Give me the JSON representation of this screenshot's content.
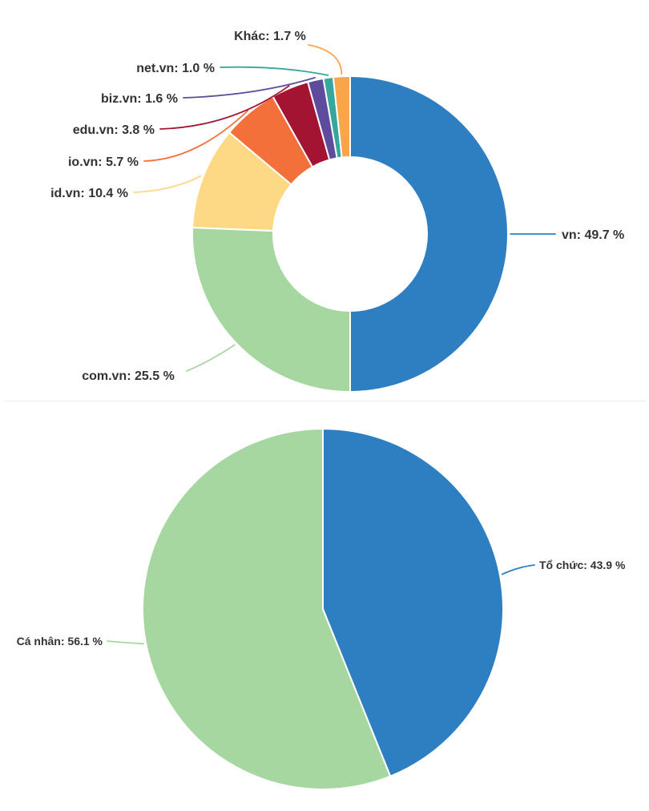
{
  "page": {
    "background": "#ffffff",
    "text_color": "#333333"
  },
  "chart_data": [
    {
      "type": "pie",
      "subtype": "donut",
      "title": "",
      "unit": "%",
      "categories": [
        "vn",
        "com.vn",
        "id.vn",
        "io.vn",
        "edu.vn",
        "biz.vn",
        "net.vn",
        "Khác"
      ],
      "values": [
        49.7,
        25.5,
        10.4,
        5.7,
        3.8,
        1.6,
        1.0,
        1.7
      ],
      "labels": [
        "vn: 49.7 %",
        "com.vn: 25.5 %",
        "id.vn: 10.4 %",
        "io.vn: 5.7 %",
        "edu.vn: 3.8 %",
        "biz.vn: 1.6 %",
        "net.vn: 1.0 %",
        "Khác: 1.7 %"
      ],
      "colors": [
        "#2e7fc1",
        "#a7d7a0",
        "#fdd985",
        "#f4703b",
        "#a31432",
        "#5e4b9e",
        "#35a79c",
        "#f9a64a"
      ],
      "start_angle_deg": -90,
      "direction": "clockwise",
      "hole_ratio": 0.49,
      "legend_position": "callout-labels"
    },
    {
      "type": "pie",
      "subtype": "pie",
      "title": "",
      "unit": "%",
      "categories": [
        "Tổ chức",
        "Cá nhân"
      ],
      "values": [
        43.9,
        56.1
      ],
      "labels": [
        "Tổ chức: 43.9 %",
        "Cá nhân: 56.1 %"
      ],
      "colors": [
        "#2e7fc1",
        "#a7d7a0"
      ],
      "start_angle_deg": -90,
      "direction": "clockwise",
      "hole_ratio": 0,
      "legend_position": "callout-labels"
    }
  ]
}
